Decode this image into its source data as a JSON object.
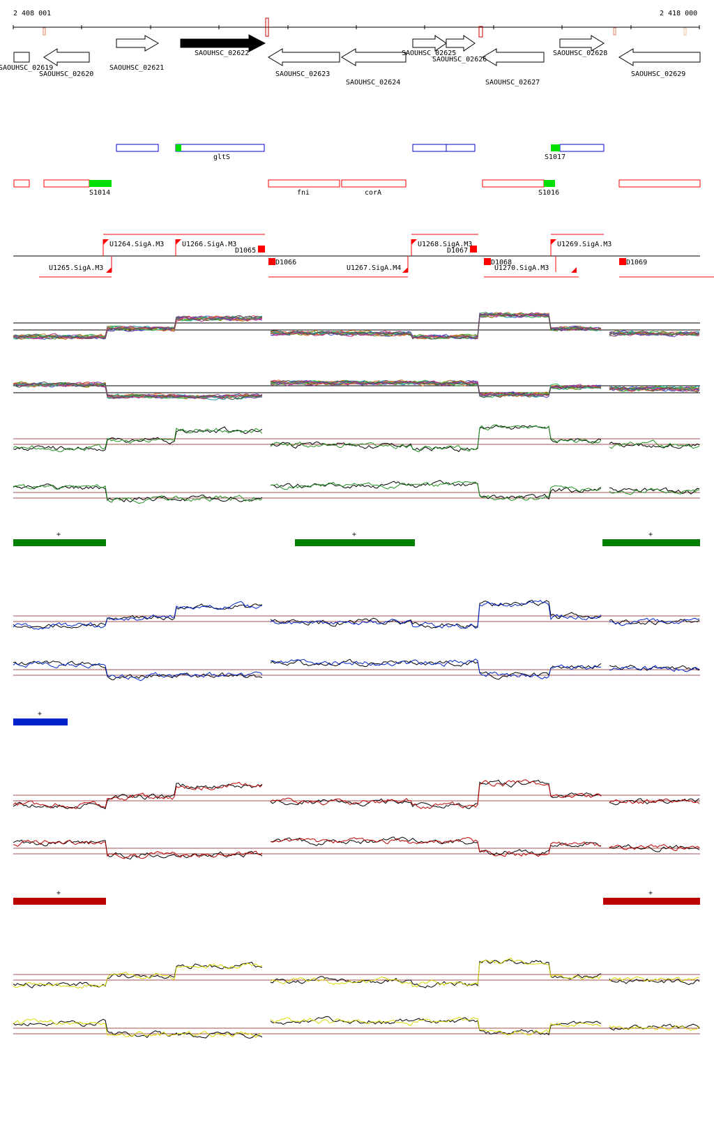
{
  "coords": {
    "start": "2 408 001",
    "end": "2 418 000"
  },
  "colors": {
    "green": "#008000",
    "blue": "#0022cc",
    "red": "#bb0000",
    "yellow": "#e0e000",
    "refline": "#a05050",
    "feature_red": "#ff0000",
    "feature_blue": "#0000cc",
    "highlight_green": "#00e000"
  },
  "genes": [
    {
      "name": "SAOUHSC_02619",
      "strand": "-"
    },
    {
      "name": "SAOUHSC_02620",
      "strand": "-"
    },
    {
      "name": "SAOUHSC_02621",
      "strand": "+"
    },
    {
      "name": "SAOUHSC_02622",
      "strand": "+",
      "highlighted": true
    },
    {
      "name": "SAOUHSC_02623",
      "strand": "-"
    },
    {
      "name": "SAOUHSC_02624",
      "strand": "-"
    },
    {
      "name": "SAOUHSC_02625",
      "strand": "+"
    },
    {
      "name": "SAOUHSC_02626",
      "strand": "+"
    },
    {
      "name": "SAOUHSC_02627",
      "strand": "-"
    },
    {
      "name": "SAOUHSC_02628",
      "strand": "+"
    },
    {
      "name": "SAOUHSC_02629",
      "strand": "-"
    }
  ],
  "plus_features": [
    {
      "label": "gltS"
    },
    {
      "label": "S1017"
    }
  ],
  "minus_features": [
    {
      "label": "S1014"
    },
    {
      "label": "fni"
    },
    {
      "label": "corA"
    },
    {
      "label": "S1016"
    }
  ],
  "promoters": [
    {
      "label": "U1264.SigA.M3"
    },
    {
      "label": "U1265.SigA.M3"
    },
    {
      "label": "U1266.SigA.M3"
    },
    {
      "label": "D1065"
    },
    {
      "label": "D1066"
    },
    {
      "label": "U1267.SigA.M4"
    },
    {
      "label": "U1268.SigA.M3"
    },
    {
      "label": "D1067"
    },
    {
      "label": "D1068"
    },
    {
      "label": "U1270.SigA.M3"
    },
    {
      "label": "U1269.SigA.M3"
    },
    {
      "label": "D1069"
    }
  ],
  "segment_marks": {
    "green": [
      "+",
      "+",
      "+"
    ],
    "blue": [
      "+"
    ],
    "red": [
      "+",
      "+"
    ]
  }
}
